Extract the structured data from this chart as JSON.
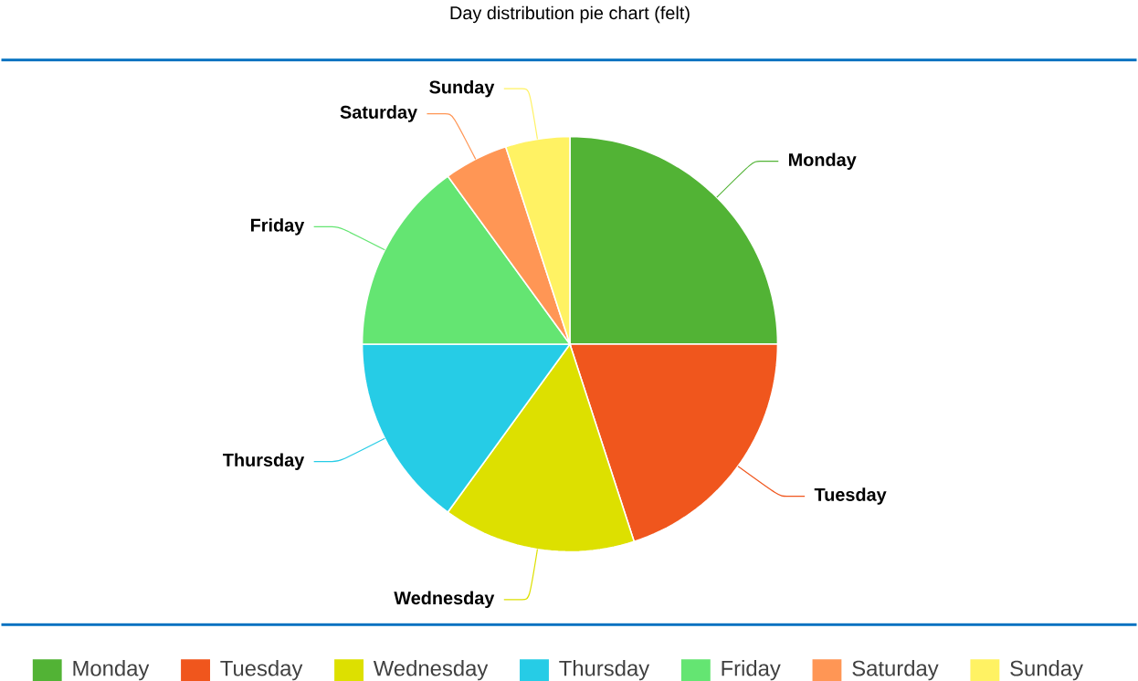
{
  "chart_data": {
    "type": "pie",
    "title": "Day distribution pie chart (felt)",
    "categories": [
      "Monday",
      "Tuesday",
      "Wednesday",
      "Thursday",
      "Friday",
      "Saturday",
      "Sunday"
    ],
    "values": [
      25,
      20,
      15,
      15,
      15,
      5,
      5
    ],
    "colors": [
      "#52b335",
      "#f0561d",
      "#dde000",
      "#26cce6",
      "#64e572",
      "#ff9655",
      "#fff263"
    ],
    "legend": "bottom"
  }
}
